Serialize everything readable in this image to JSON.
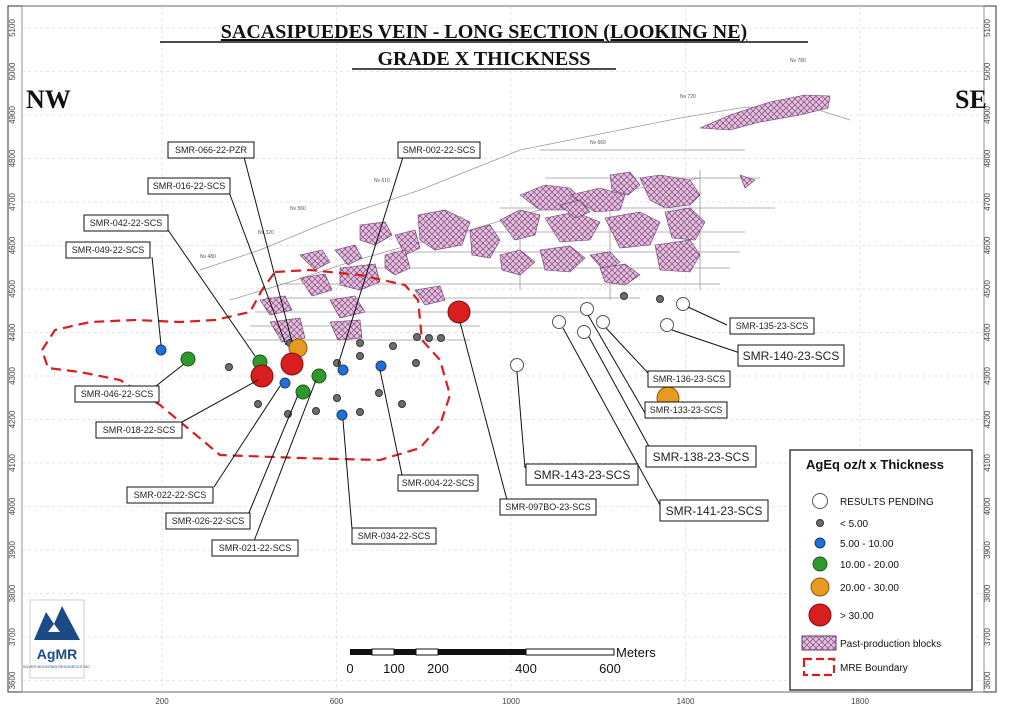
{
  "title": {
    "line1": "SACASIPUEDES VEIN - LONG SECTION (LOOKING NE)",
    "line2": "GRADE X THICKNESS"
  },
  "direction": {
    "left": "NW",
    "right": "SE"
  },
  "axes": {
    "x_ticks": [
      "200",
      "600",
      "1000",
      "1400",
      "1800"
    ],
    "y_ticks": [
      "5100",
      "5000",
      "4900",
      "4800",
      "4700",
      "4600",
      "4500",
      "4400",
      "4300",
      "4200",
      "4100",
      "4000",
      "3900",
      "3800",
      "3700",
      "3600"
    ]
  },
  "level_labels": [
    "Nv 780",
    "Nv 720",
    "Nv 660",
    "Nv 610",
    "Nv 560",
    "Nv 320",
    "Nv 480"
  ],
  "callouts": [
    "SMR-066-22-PZR",
    "SMR-016-22-SCS",
    "SMR-042-22-SCS",
    "SMR-049-22-SCS",
    "SMR-002-22-SCS",
    "SMR-046-22-SCS",
    "SMR-018-22-SCS",
    "SMR-022-22-SCS",
    "SMR-026-22-SCS",
    "SMR-021-22-SCS",
    "SMR-034-22-SCS",
    "SMR-004-22-SCS",
    "SMR-097BO-23-SCS",
    "SMR-143-23-SCS",
    "SMR-138-23-SCS",
    "SMR-141-23-SCS",
    "SMR-133-23-SCS",
    "SMR-136-23-SCS",
    "SMR-140-23-SCS",
    "SMR-135-23-SCS"
  ],
  "legend": {
    "title": "AgEq oz/t x Thickness",
    "items": [
      {
        "label": "RESULTS PENDING",
        "color": "#ffffff"
      },
      {
        "label": "< 5.00",
        "color": "#6d6d6d"
      },
      {
        "label": "5.00 - 10.00",
        "color": "#1f6fd6"
      },
      {
        "label": "10.00 - 20.00",
        "color": "#2e9a2e"
      },
      {
        "label": "20.00 - 30.00",
        "color": "#e69a20"
      },
      {
        "label": "> 30.00",
        "color": "#d81e1e"
      },
      {
        "label": "Past-production blocks",
        "color": "#e3b8d8"
      },
      {
        "label": "MRE Boundary",
        "color": "#d81e1e"
      }
    ]
  },
  "scale_bar": {
    "unit": "Meters",
    "labels": [
      "0",
      "100",
      "200",
      "400",
      "600"
    ]
  },
  "logo": {
    "name": "AgMR",
    "sub": "SILVER MOUNTAIN RESOURCES INC."
  }
}
